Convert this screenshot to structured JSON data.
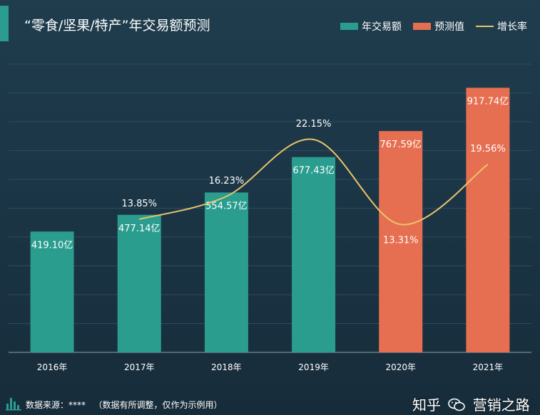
{
  "header": {
    "title": "“零食/坚果/特产”年交易额预测"
  },
  "legend": {
    "items": [
      {
        "label": "年交易额",
        "kind": "bar",
        "color": "#2a9d8f"
      },
      {
        "label": "预测值",
        "kind": "bar",
        "color": "#e76f51"
      },
      {
        "label": "增长率",
        "kind": "line",
        "color": "#e9c46a"
      }
    ]
  },
  "chart_data": {
    "type": "bar",
    "categories": [
      "2016年",
      "2017年",
      "2018年",
      "2019年",
      "2020年",
      "2021年"
    ],
    "series": [
      {
        "name": "年交易额",
        "type": "bar",
        "values": [
          419.1,
          477.14,
          554.57,
          677.43,
          null,
          null
        ],
        "labels": [
          "419.10亿",
          "477.14亿",
          "554.57亿",
          "677.43亿",
          "",
          ""
        ]
      },
      {
        "name": "预测值",
        "type": "bar",
        "values": [
          null,
          null,
          null,
          null,
          767.59,
          917.74
        ],
        "labels": [
          "",
          "",
          "",
          "",
          "767.59亿",
          "917.74亿"
        ]
      },
      {
        "name": "增长率",
        "type": "line",
        "smooth": true,
        "values": [
          null,
          13.85,
          16.23,
          22.15,
          13.31,
          19.56
        ],
        "labels": [
          "",
          "13.85%",
          "16.23%",
          "22.15%",
          "13.31%",
          "19.56%"
        ]
      }
    ],
    "ylim": [
      0,
      1000
    ],
    "ylim_rate": [
      0,
      30
    ],
    "grid": true,
    "legend_position": "top-right",
    "colors": {
      "actual": "#2a9d8f",
      "forecast": "#e76f51",
      "rate": "#e9c46a",
      "grid": "#2f4c5c",
      "axis": "#8ea3ad"
    }
  },
  "footer": {
    "source": "数据来源：****   （数据有所调整，仅作为示例用）",
    "watermark_before": "知乎",
    "watermark_after": "营销之路"
  }
}
